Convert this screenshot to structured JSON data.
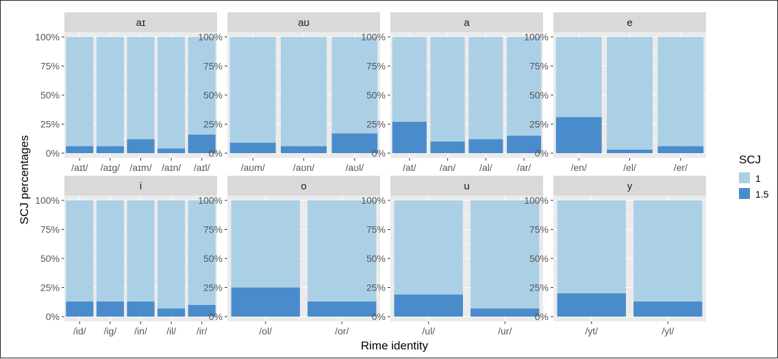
{
  "chart_data": {
    "type": "bar",
    "stacked": true,
    "xlabel": "Rime identity",
    "ylabel": "SCJ percentages",
    "ylim": [
      0,
      100
    ],
    "y_ticks": [
      "0%",
      "25%",
      "50%",
      "75%",
      "100%"
    ],
    "grid": true,
    "legend": {
      "title": "SCJ",
      "position": "right",
      "entries": [
        {
          "label": "1",
          "color": "#abd0e6"
        },
        {
          "label": "1.5",
          "color": "#4a8ccb"
        }
      ]
    },
    "colors": {
      "1": "#abd0e6",
      "1.5": "#4a8ccb",
      "panel_bg": "#ebebeb",
      "strip_bg": "#d9d9d9",
      "grid": "#ffffff"
    },
    "panels": [
      {
        "title": "aɪ",
        "categories": [
          "/aɪt/",
          "/aɪg/",
          "/aɪm/",
          "/aɪn/",
          "/aɪl/"
        ],
        "series": [
          {
            "name": "1.5",
            "values": [
              6,
              6,
              12,
              4,
              16
            ]
          },
          {
            "name": "1",
            "values": [
              94,
              94,
              88,
              96,
              84
            ]
          }
        ]
      },
      {
        "title": "aʊ",
        "categories": [
          "/aʊm/",
          "/aʊn/",
          "/aʊl/"
        ],
        "series": [
          {
            "name": "1.5",
            "values": [
              9,
              6,
              17
            ]
          },
          {
            "name": "1",
            "values": [
              91,
              94,
              83
            ]
          }
        ]
      },
      {
        "title": "a",
        "categories": [
          "/at/",
          "/an/",
          "/al/",
          "/ar/"
        ],
        "series": [
          {
            "name": "1.5",
            "values": [
              27,
              10,
              12,
              15
            ]
          },
          {
            "name": "1",
            "values": [
              73,
              90,
              88,
              85
            ]
          }
        ]
      },
      {
        "title": "e",
        "categories": [
          "/en/",
          "/el/",
          "/er/"
        ],
        "series": [
          {
            "name": "1.5",
            "values": [
              31,
              3,
              6
            ]
          },
          {
            "name": "1",
            "values": [
              69,
              97,
              94
            ]
          }
        ]
      },
      {
        "title": "i",
        "categories": [
          "/id/",
          "/ig/",
          "/in/",
          "/il/",
          "/ir/"
        ],
        "series": [
          {
            "name": "1.5",
            "values": [
              13,
              13,
              13,
              7,
              10
            ]
          },
          {
            "name": "1",
            "values": [
              87,
              87,
              87,
              93,
              90
            ]
          }
        ]
      },
      {
        "title": "o",
        "categories": [
          "/ol/",
          "/or/"
        ],
        "series": [
          {
            "name": "1.5",
            "values": [
              25,
              13
            ]
          },
          {
            "name": "1",
            "values": [
              75,
              87
            ]
          }
        ]
      },
      {
        "title": "u",
        "categories": [
          "/ul/",
          "/ur/"
        ],
        "series": [
          {
            "name": "1.5",
            "values": [
              19,
              7
            ]
          },
          {
            "name": "1",
            "values": [
              81,
              93
            ]
          }
        ]
      },
      {
        "title": "y",
        "categories": [
          "/yt/",
          "/yl/"
        ],
        "series": [
          {
            "name": "1.5",
            "values": [
              20,
              13
            ]
          },
          {
            "name": "1",
            "values": [
              80,
              87
            ]
          }
        ]
      }
    ]
  }
}
